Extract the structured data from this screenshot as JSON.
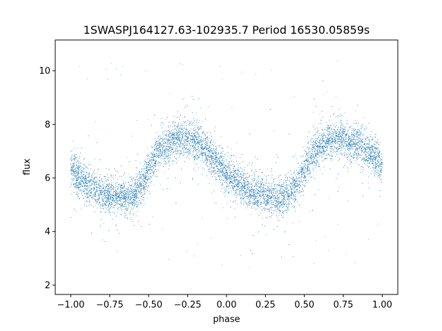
{
  "chart_data": {
    "type": "scatter",
    "title": "1SWASPJ164127.63-102935.7 Period 16530.05859s",
    "xlabel": "phase",
    "ylabel": "flux",
    "xlim": [
      -1.1,
      1.1
    ],
    "ylim": [
      1.65,
      11.15
    ],
    "xticks": [
      -1.0,
      -0.75,
      -0.5,
      -0.25,
      0.0,
      0.25,
      0.5,
      0.75,
      1.0
    ],
    "xtick_labels": [
      "−1.00",
      "−0.75",
      "−0.50",
      "−0.25",
      "0.00",
      "0.25",
      "0.50",
      "0.75",
      "1.00"
    ],
    "yticks": [
      2,
      4,
      6,
      8,
      10
    ],
    "ytick_labels": [
      "2",
      "4",
      "6",
      "8",
      "10"
    ],
    "grid": false,
    "legend": "none",
    "marker_color": "#1f77b4",
    "series": [
      {
        "points_x": [
          -1.0,
          -0.98,
          -0.95,
          -0.9,
          -0.85,
          -0.8,
          -0.75,
          -0.7,
          -0.65,
          -0.6,
          -0.55,
          -0.5,
          -0.45,
          -0.4,
          -0.35,
          -0.3,
          -0.25,
          -0.2,
          -0.15,
          -0.1,
          -0.05,
          0.0,
          0.05,
          0.1,
          0.15,
          0.2,
          0.25,
          0.3,
          0.35,
          0.4,
          0.45,
          0.5,
          0.55,
          0.6,
          0.65,
          0.7,
          0.75,
          0.8,
          0.85,
          0.9,
          0.95,
          0.98,
          1.0
        ],
        "points_y": [
          6.5,
          6.2,
          6.0,
          5.8,
          5.6,
          5.45,
          5.35,
          5.3,
          5.3,
          5.4,
          5.7,
          6.3,
          6.9,
          7.2,
          7.35,
          7.45,
          7.45,
          7.35,
          7.1,
          6.8,
          6.5,
          6.2,
          5.9,
          5.7,
          5.5,
          5.4,
          5.35,
          5.3,
          5.3,
          5.4,
          5.7,
          6.3,
          6.9,
          7.2,
          7.35,
          7.45,
          7.45,
          7.35,
          7.2,
          7.0,
          6.8,
          6.6,
          6.5
        ]
      }
    ]
  }
}
